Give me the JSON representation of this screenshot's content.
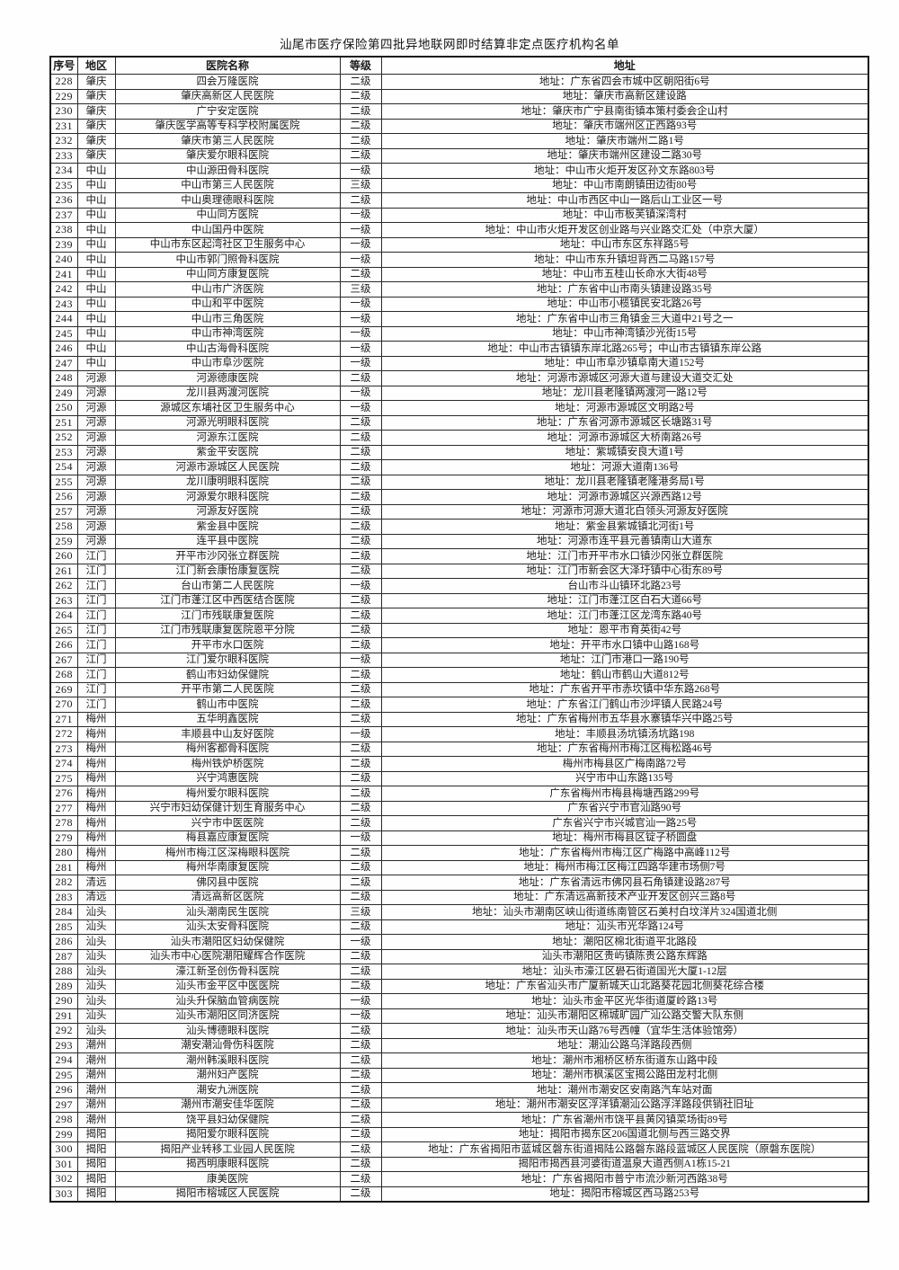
{
  "page_title": "汕尾市医疗保险第四批异地联网即时结算非定点医疗机构名单",
  "table": {
    "headers": {
      "no": "序号",
      "area": "地区",
      "name": "医院名称",
      "level": "等级",
      "address": "地址"
    },
    "rows": [
      [
        "228",
        "肇庆",
        "四会万隆医院",
        "二级",
        "地址：广东省四会市城中区朝阳街6号"
      ],
      [
        "229",
        "肇庆",
        "肇庆高新区人民医院",
        "二级",
        "地址：肇庆市高新区建设路"
      ],
      [
        "230",
        "肇庆",
        "广宁安定医院",
        "二级",
        "地址：肇庆市广宁县南街镇本策村委会企山村"
      ],
      [
        "231",
        "肇庆",
        "肇庆医学高等专科学校附属医院",
        "二级",
        "地址：肇庆市端州区正西路93号"
      ],
      [
        "232",
        "肇庆",
        "肇庆市第三人民医院",
        "二级",
        "地址：肇庆市端州二路1号"
      ],
      [
        "233",
        "肇庆",
        "肇庆爱尔眼科医院",
        "二级",
        "地址：肇庆市端州区建设二路30号"
      ],
      [
        "234",
        "中山",
        "中山源田骨科医院",
        "一级",
        "地址：中山市火炬开发区孙文东路803号"
      ],
      [
        "235",
        "中山",
        "中山市第三人民医院",
        "三级",
        "地址：中山市南朗镇田边街80号"
      ],
      [
        "236",
        "中山",
        "中山奥理德眼科医院",
        "二级",
        "地址：中山市西区中山一路后山工业区一号"
      ],
      [
        "237",
        "中山",
        "中山同方医院",
        "一级",
        "地址：中山市板芙镇深湾村"
      ],
      [
        "238",
        "中山",
        "中山国丹中医院",
        "一级",
        "地址：中山市火炬开发区创业路与兴业路交汇处（中京大厦）"
      ],
      [
        "239",
        "中山",
        "中山市东区起湾社区卫生服务中心",
        "一级",
        "地址：中山市东区东祥路5号"
      ],
      [
        "240",
        "中山",
        "中山市郭门照骨科医院",
        "一级",
        "地址：中山市东升镇坦背西二马路157号"
      ],
      [
        "241",
        "中山",
        "中山同方康复医院",
        "二级",
        "地址：中山市五桂山长命水大街48号"
      ],
      [
        "242",
        "中山",
        "中山市广济医院",
        "三级",
        "地址：广东省中山市南头镇建设路35号"
      ],
      [
        "243",
        "中山",
        "中山和平中医院",
        "一级",
        "地址：中山市小榄镇民安北路26号"
      ],
      [
        "244",
        "中山",
        "中山市三角医院",
        "一级",
        "地址：广东省中山市三角镇金三大道中21号之一"
      ],
      [
        "245",
        "中山",
        "中山市神湾医院",
        "一级",
        "地址：中山市神湾镇沙光街15号"
      ],
      [
        "246",
        "中山",
        "中山古海骨科医院",
        "一级",
        "地址：中山市古镇镇东岸北路265号；中山市古镇镇东岸公路"
      ],
      [
        "247",
        "中山",
        "中山市阜沙医院",
        "一级",
        "地址：中山市阜沙镇阜南大道152号"
      ],
      [
        "248",
        "河源",
        "河源德康医院",
        "二级",
        "地址：河源市源城区河源大道与建设大道交汇处"
      ],
      [
        "249",
        "河源",
        "龙川县两渡河医院",
        "一级",
        "地址：龙川县老隆镇两渡河一路12号"
      ],
      [
        "250",
        "河源",
        "源城区东埔社区卫生服务中心",
        "一级",
        "地址：河源市源城区文明路2号"
      ],
      [
        "251",
        "河源",
        "河源光明眼科医院",
        "二级",
        "地址：广东省河源市源城区长塘路31号"
      ],
      [
        "252",
        "河源",
        "河源东江医院",
        "二级",
        "地址：河源市源城区大桥南路26号"
      ],
      [
        "253",
        "河源",
        "紫金平安医院",
        "二级",
        "地址：紫城镇安良大道1号"
      ],
      [
        "254",
        "河源",
        "河源市源城区人民医院",
        "二级",
        "地址：河源大道南136号"
      ],
      [
        "255",
        "河源",
        "龙川康明眼科医院",
        "二级",
        "地址：龙川县老隆镇老隆港务局1号"
      ],
      [
        "256",
        "河源",
        "河源爱尔眼科医院",
        "二级",
        "地址：河源市源城区兴源西路12号"
      ],
      [
        "257",
        "河源",
        "河源友好医院",
        "二级",
        "地址：河源市河源大道北白领头河源友好医院"
      ],
      [
        "258",
        "河源",
        "紫金县中医院",
        "二级",
        "地址：紫金县紫城镇北河街1号"
      ],
      [
        "259",
        "河源",
        "连平县中医院",
        "二级",
        "地址：河源市连平县元善镇南山大道东"
      ],
      [
        "260",
        "江门",
        "开平市沙冈张立群医院",
        "二级",
        "地址：江门市开平市水口镇沙冈张立群医院"
      ],
      [
        "261",
        "江门",
        "江门新会康怡康复医院",
        "二级",
        "地址：江门市新会区大泽圩镇中心街东89号"
      ],
      [
        "262",
        "江门",
        "台山市第二人民医院",
        "一级",
        "台山市斗山镇环北路23号"
      ],
      [
        "263",
        "江门",
        "江门市蓬江区中西医结合医院",
        "二级",
        "地址：江门市蓬江区白石大道66号"
      ],
      [
        "264",
        "江门",
        "江门市残联康复医院",
        "二级",
        "地址：江门市蓬江区龙湾东路40号"
      ],
      [
        "265",
        "江门",
        "江门市残联康复医院恩平分院",
        "二级",
        "地址：恩平市育英街42号"
      ],
      [
        "266",
        "江门",
        "开平市水口医院",
        "二级",
        "地址：开平市水口镇中山路168号"
      ],
      [
        "267",
        "江门",
        "江门爱尔眼科医院",
        "一级",
        "地址：江门市港口一路190号"
      ],
      [
        "268",
        "江门",
        "鹤山市妇幼保健院",
        "二级",
        "地址：鹤山市鹤山大道812号"
      ],
      [
        "269",
        "江门",
        "开平市第二人民医院",
        "二级",
        "地址：广东省开平市赤坎镇中华东路268号"
      ],
      [
        "270",
        "江门",
        "鹤山市中医院",
        "二级",
        "地址：广东省江门鹤山市沙坪镇人民路24号"
      ],
      [
        "271",
        "梅州",
        "五华明鑫医院",
        "二级",
        "地址：广东省梅州市五华县水寨镇华兴中路25号"
      ],
      [
        "272",
        "梅州",
        "丰顺县中山友好医院",
        "一级",
        "地址：丰顺县汤坑镇汤坑路198"
      ],
      [
        "273",
        "梅州",
        "梅州客都骨科医院",
        "二级",
        "地址：广东省梅州市梅江区梅松路46号"
      ],
      [
        "274",
        "梅州",
        "梅州铁炉桥医院",
        "二级",
        "梅州市梅县区广梅南路72号"
      ],
      [
        "275",
        "梅州",
        "兴宁鸿惠医院",
        "二级",
        "兴宁市中山东路135号"
      ],
      [
        "276",
        "梅州",
        "梅州爱尔眼科医院",
        "二级",
        "广东省梅州市梅县梅塘西路299号"
      ],
      [
        "277",
        "梅州",
        "兴宁市妇幼保健计划生育服务中心",
        "二级",
        "广东省兴宁市官汕路90号"
      ],
      [
        "278",
        "梅州",
        "兴宁市中医医院",
        "二级",
        "广东省兴宁市兴城官汕一路25号"
      ],
      [
        "279",
        "梅州",
        "梅县嘉应康复医院",
        "一级",
        "地址：梅州市梅县区锭子桥圆盘"
      ],
      [
        "280",
        "梅州",
        "梅州市梅江区深梅眼科医院",
        "二级",
        "地址：广东省梅州市梅江区广梅路中高峰112号"
      ],
      [
        "281",
        "梅州",
        "梅州华南康复医院",
        "二级",
        "地址：梅州市梅江区梅江四路华建市场侧7号"
      ],
      [
        "282",
        "清远",
        "佛冈县中医院",
        "二级",
        "地址：广东省清远市佛冈县石角镇建设路287号"
      ],
      [
        "283",
        "清远",
        "清远高新区医院",
        "二级",
        "地址：广东清远高新技术产业开发区创兴三路8号"
      ],
      [
        "284",
        "汕头",
        "汕头潮南民生医院",
        "三级",
        "地址：汕头市潮南区峡山街道练南管区石美村白坟洋片324国道北侧"
      ],
      [
        "285",
        "汕头",
        "汕头太安骨科医院",
        "二级",
        "地址：汕头市光华路124号"
      ],
      [
        "286",
        "汕头",
        "汕头市潮阳区妇幼保健院",
        "一级",
        "地址：潮阳区棉北街道平北路段"
      ],
      [
        "287",
        "汕头",
        "汕头市中心医院潮阳耀辉合作医院",
        "二级",
        "汕头市潮阳区贵屿镇陈贵公路东辉路"
      ],
      [
        "288",
        "汕头",
        "濠江新圣创伤骨科医院",
        "二级",
        "地址：汕头市濠江区礐石街道国光大厦1-12层"
      ],
      [
        "289",
        "汕头",
        "汕头市金平区中医医院",
        "二级",
        "地址：广东省汕头市广厦新城天山北路葵花园北侧葵花综合楼"
      ],
      [
        "290",
        "汕头",
        "汕头升保脑血管病医院",
        "一级",
        "地址：汕头市金平区光华街道厦岭路13号"
      ],
      [
        "291",
        "汕头",
        "汕头市潮阳区同济医院",
        "一级",
        "地址：汕头市潮阳区棉城旷园广汕公路交警大队东侧"
      ],
      [
        "292",
        "汕头",
        "汕头博德眼科医院",
        "二级",
        "地址：汕头市天山路76号西幢（宜华生活体验馆旁）"
      ],
      [
        "293",
        "潮州",
        "潮安潮汕骨伤科医院",
        "二级",
        "地址：潮汕公路乌洋路段西侧"
      ],
      [
        "294",
        "潮州",
        "潮州韩溪眼科医院",
        "二级",
        "地址：潮州市湘桥区桥东街道东山路中段"
      ],
      [
        "295",
        "潮州",
        "潮州妇产医院",
        "二级",
        "地址：潮州市枫溪区宝揭公路田龙村北侧"
      ],
      [
        "296",
        "潮州",
        "潮安九洲医院",
        "二级",
        "地址：潮州市潮安区安南路汽车站对面"
      ],
      [
        "297",
        "潮州",
        "潮州市潮安佳华医院",
        "二级",
        "地址：潮州市潮安区浮洋镇潮汕公路浮洋路段供销社旧址"
      ],
      [
        "298",
        "潮州",
        "饶平县妇幼保健院",
        "二级",
        "地址：广东省潮州市饶平县黄冈镇菜场街89号"
      ],
      [
        "299",
        "揭阳",
        "揭阳爱尔眼科医院",
        "二级",
        "地址：揭阳市揭东区206国道北侧与西三路交界"
      ],
      [
        "300",
        "揭阳",
        "揭阳产业转移工业园人民医院",
        "二级",
        "地址：广东省揭阳市蓝城区磐东街道揭陆公路磐东路段蓝城区人民医院（原磐东医院）"
      ],
      [
        "301",
        "揭阳",
        "揭西明康眼科医院",
        "二级",
        "揭阳市揭西县河婆街道温泉大道西侧A1栋15-21"
      ],
      [
        "302",
        "揭阳",
        "康美医院",
        "二级",
        "地址：广东省揭阳市普宁市流沙新河西路38号"
      ],
      [
        "303",
        "揭阳",
        "揭阳市榕城区人民医院",
        "二级",
        "地址：揭阳市榕城区西马路253号"
      ]
    ]
  }
}
